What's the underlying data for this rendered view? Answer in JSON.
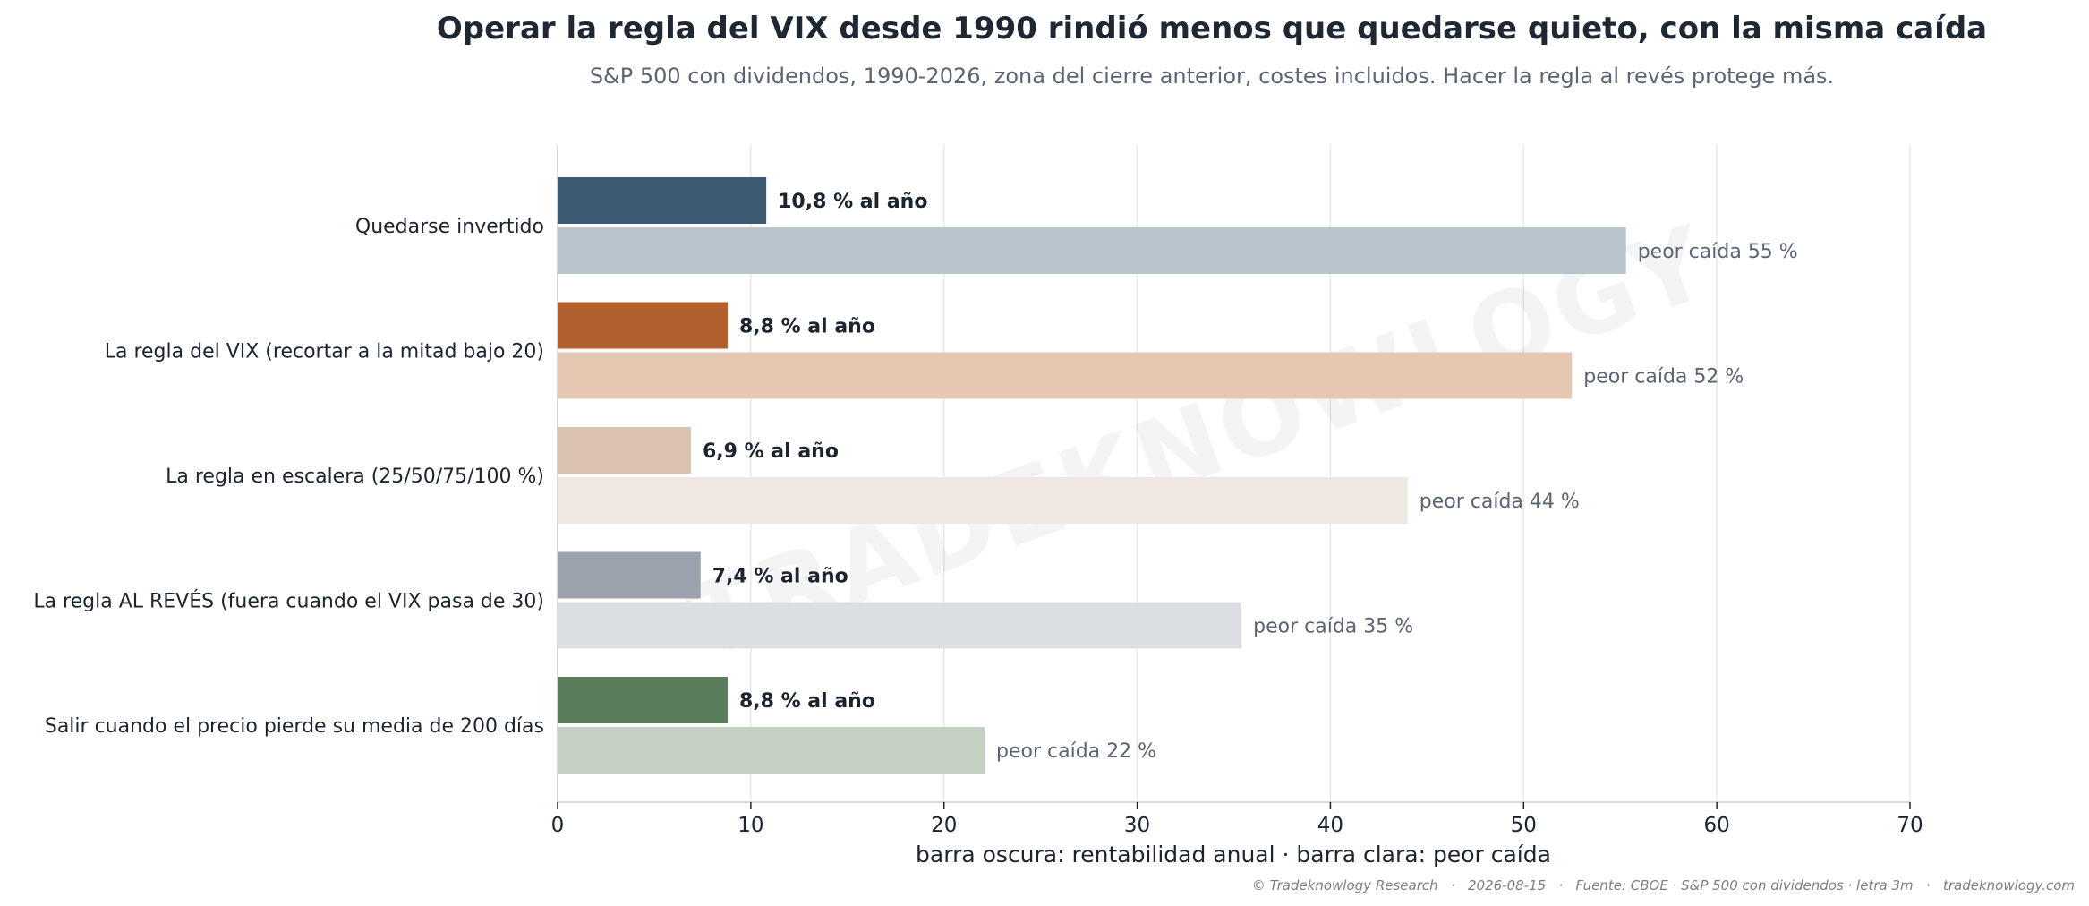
{
  "chart_data": {
    "type": "bar",
    "title": "Operar la regla del VIX desde 1990 rindió menos que quedarse quieto, con la misma caída",
    "subtitle": "S&P 500 con dividendos, 1990-2026, zona del cierre anterior, costes incluidos. Hacer la regla al revés protege más.",
    "xlabel": "barra oscura: rentabilidad anual · barra clara: peor caída",
    "xlim": [
      0,
      70
    ],
    "xticks": [
      0,
      10,
      20,
      30,
      40,
      50,
      60,
      70
    ],
    "xtick_labels": [
      "0",
      "10",
      "20",
      "30",
      "40",
      "50",
      "60",
      "70"
    ],
    "grid": true,
    "orientation": "horizontal",
    "categories": [
      "Quedarse invertido",
      "La regla del VIX (recortar a la mitad bajo 20)",
      "La regla en escalera (25/50/75/100 %)",
      "La regla AL REVÉS (fuera cuando el VIX pasa de 30)",
      "Salir cuando el precio pierde su media de 200 días"
    ],
    "series": [
      {
        "name": "rentabilidad anual",
        "values": [
          10.8,
          8.8,
          6.9,
          7.4,
          8.8
        ],
        "labels": [
          "10,8 % al año",
          "8,8 % al año",
          "6,9 % al año",
          "7,4 % al año",
          "8,8 % al año"
        ]
      },
      {
        "name": "peor caída",
        "values": [
          55.3,
          52.5,
          44,
          35.4,
          22.1
        ],
        "labels": [
          "peor caída 55 %",
          "peor caída 52 %",
          "peor caída 44 %",
          "peor caída 35 %",
          "peor caída 22 %"
        ]
      }
    ],
    "colors": {
      "dark": [
        "#3d5a74",
        "#b2602d",
        "#dbc2b1",
        "#9aa2ad",
        "#5a7d5b"
      ],
      "light": [
        "#bac4cd",
        "#e5c7b2",
        "#f0e7e1",
        "#dbdfe3",
        "#c6d1c6"
      ]
    }
  },
  "watermark": "TRADEKNOWLOGY",
  "footer": "© Tradeknowlogy Research   ·   2026-08-15   ·   Fuente: CBOE · S&P 500 con dividendos · letra 3m   ·   tradeknowlogy.com"
}
